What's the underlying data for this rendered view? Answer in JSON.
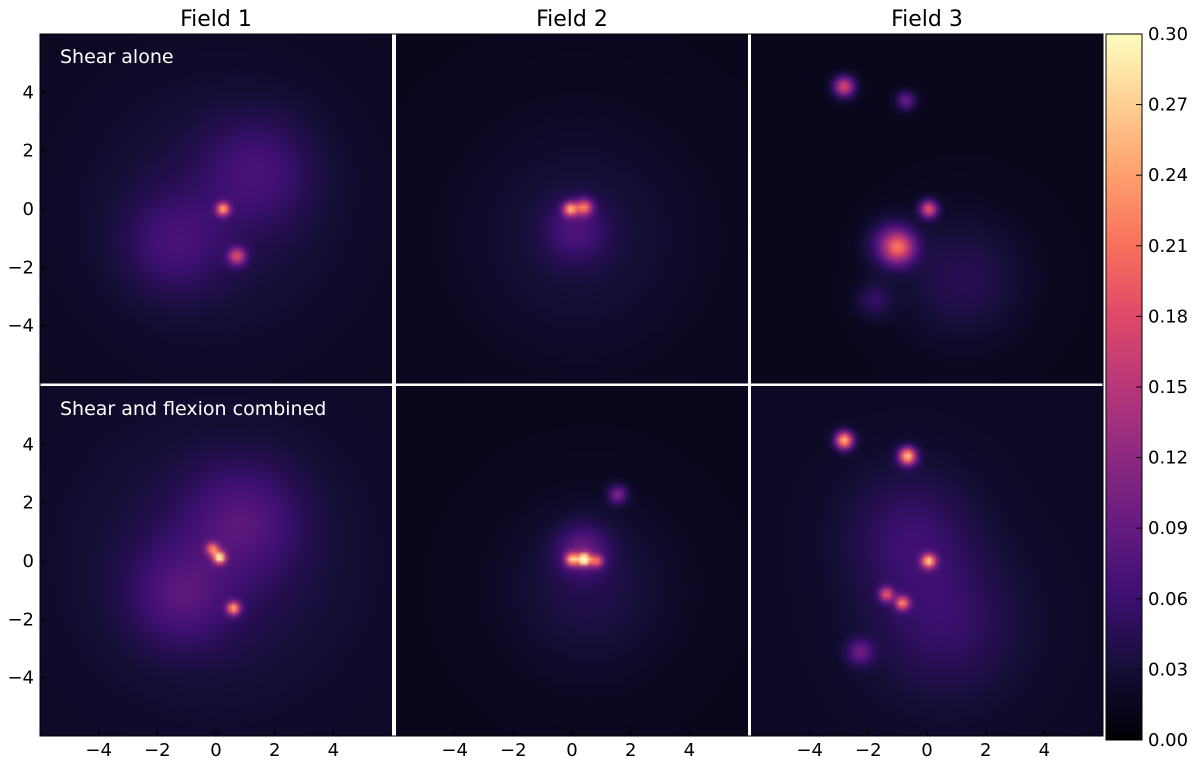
{
  "chart_data": {
    "type": "heatmap",
    "colormap": "magma",
    "columns": [
      "Field 1",
      "Field 2",
      "Field 3"
    ],
    "rows": [
      "Shear alone",
      "Shear and flexion combined"
    ],
    "x_ticks": [
      "−4",
      "−2",
      "0",
      "2",
      "4"
    ],
    "y_ticks": [
      "4",
      "2",
      "0",
      "−2",
      "−4"
    ],
    "xlim": [
      -5,
      5
    ],
    "ylim": [
      -5,
      5
    ],
    "colorbar": {
      "min": 0.0,
      "max": 0.3,
      "ticks": [
        "0.30",
        "0.27",
        "0.24",
        "0.21",
        "0.18",
        "0.15",
        "0.12",
        "0.09",
        "0.06",
        "0.03",
        "0.00"
      ]
    },
    "panels": [
      {
        "row": 0,
        "col": 0,
        "background": 0.018,
        "peaks": [
          {
            "x": 0.2,
            "y": 0.0,
            "value": 0.2,
            "sigma": 0.13
          },
          {
            "x": 0.6,
            "y": -1.35,
            "value": 0.14,
            "sigma": 0.17
          },
          {
            "x": 1.2,
            "y": 1.1,
            "value": 0.035,
            "sigma": 1.1
          },
          {
            "x": -1.2,
            "y": -1.0,
            "value": 0.035,
            "sigma": 1.0
          },
          {
            "x": 0.0,
            "y": 0.0,
            "value": 0.02,
            "sigma": 2.6
          }
        ]
      },
      {
        "row": 0,
        "col": 1,
        "background": 0.015,
        "peaks": [
          {
            "x": -0.05,
            "y": 0.0,
            "value": 0.2,
            "sigma": 0.14
          },
          {
            "x": 0.35,
            "y": 0.05,
            "value": 0.17,
            "sigma": 0.16
          },
          {
            "x": 0.1,
            "y": -0.6,
            "value": 0.04,
            "sigma": 0.6
          },
          {
            "x": 0.2,
            "y": -0.8,
            "value": 0.02,
            "sigma": 2.2
          }
        ]
      },
      {
        "row": 0,
        "col": 2,
        "background": 0.015,
        "peaks": [
          {
            "x": -2.35,
            "y": 3.5,
            "value": 0.16,
            "sigma": 0.2
          },
          {
            "x": -0.6,
            "y": 3.1,
            "value": 0.08,
            "sigma": 0.18
          },
          {
            "x": 0.05,
            "y": 0.0,
            "value": 0.17,
            "sigma": 0.17
          },
          {
            "x": -0.8,
            "y": -1.1,
            "value": 0.13,
            "sigma": 0.3
          },
          {
            "x": -1.0,
            "y": -1.0,
            "value": 0.07,
            "sigma": 0.45
          },
          {
            "x": 1.0,
            "y": -2.0,
            "value": 0.03,
            "sigma": 1.2
          },
          {
            "x": -1.5,
            "y": -2.6,
            "value": 0.035,
            "sigma": 0.35
          }
        ]
      },
      {
        "row": 1,
        "col": 0,
        "background": 0.02,
        "peaks": [
          {
            "x": 0.1,
            "y": 0.1,
            "value": 0.24,
            "sigma": 0.12
          },
          {
            "x": -0.1,
            "y": 0.35,
            "value": 0.16,
            "sigma": 0.12
          },
          {
            "x": 0.5,
            "y": -1.35,
            "value": 0.2,
            "sigma": 0.13
          },
          {
            "x": 0.8,
            "y": 1.2,
            "value": 0.04,
            "sigma": 1.1
          },
          {
            "x": -1.0,
            "y": -1.0,
            "value": 0.04,
            "sigma": 1.0
          },
          {
            "x": 0.0,
            "y": 0.0,
            "value": 0.025,
            "sigma": 2.6
          }
        ]
      },
      {
        "row": 1,
        "col": 1,
        "background": 0.015,
        "peaks": [
          {
            "x": 0.35,
            "y": 0.05,
            "value": 0.3,
            "sigma": 0.12
          },
          {
            "x": 0.0,
            "y": 0.05,
            "value": 0.2,
            "sigma": 0.13
          },
          {
            "x": 0.7,
            "y": 0.0,
            "value": 0.15,
            "sigma": 0.12
          },
          {
            "x": 0.3,
            "y": 0.3,
            "value": 0.06,
            "sigma": 0.5
          },
          {
            "x": 1.3,
            "y": 1.9,
            "value": 0.09,
            "sigma": 0.18
          },
          {
            "x": 0.5,
            "y": -0.8,
            "value": 0.025,
            "sigma": 1.6
          }
        ]
      },
      {
        "row": 1,
        "col": 2,
        "background": 0.02,
        "peaks": [
          {
            "x": -2.35,
            "y": 3.45,
            "value": 0.24,
            "sigma": 0.17
          },
          {
            "x": -0.55,
            "y": 3.0,
            "value": 0.24,
            "sigma": 0.17
          },
          {
            "x": 0.05,
            "y": 0.0,
            "value": 0.22,
            "sigma": 0.14
          },
          {
            "x": -1.15,
            "y": -0.95,
            "value": 0.15,
            "sigma": 0.14
          },
          {
            "x": -0.7,
            "y": -1.2,
            "value": 0.18,
            "sigma": 0.14
          },
          {
            "x": -1.9,
            "y": -2.6,
            "value": 0.07,
            "sigma": 0.25
          },
          {
            "x": -0.5,
            "y": 0.8,
            "value": 0.035,
            "sigma": 1.3
          },
          {
            "x": 0.5,
            "y": -1.8,
            "value": 0.035,
            "sigma": 1.5
          }
        ]
      }
    ]
  }
}
